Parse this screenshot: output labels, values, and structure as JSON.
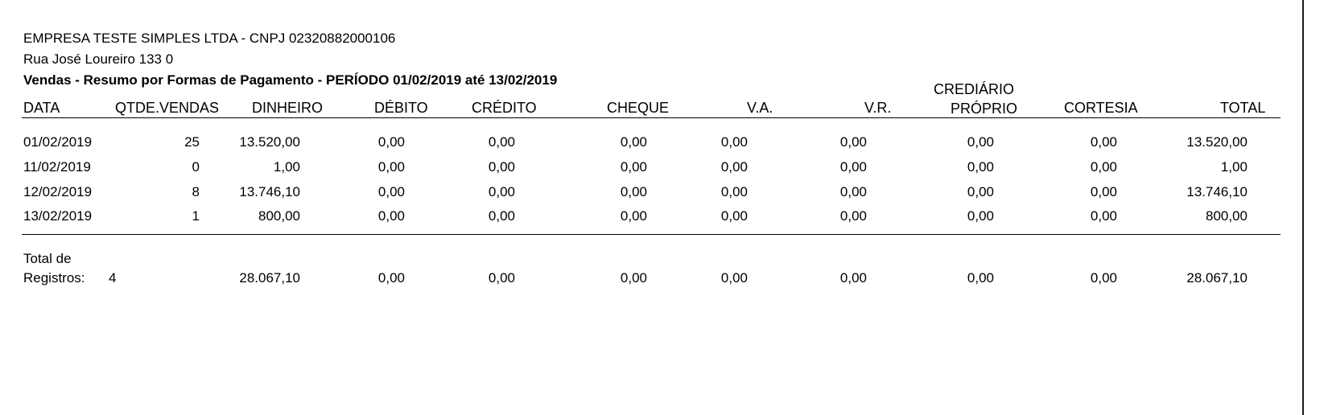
{
  "header": {
    "company": "EMPRESA TESTE SIMPLES LTDA - CNPJ 02320882000106",
    "address": "Rua José Loureiro 133 0",
    "report_title": "Vendas - Resumo por Formas de Pagamento - PERÍODO 01/02/2019 até 13/02/2019"
  },
  "columns": {
    "data": "DATA",
    "qtde_vendas": "QTDE.VENDAS",
    "dinheiro": "DINHEIRO",
    "debito": "DÉBITO",
    "credito": "CRÉDITO",
    "cheque": "CHEQUE",
    "va": "V.A.",
    "vr": "V.R.",
    "crediario_line1": "CREDIÁRIO",
    "crediario_line2": "PRÓPRIO",
    "cortesia": "CORTESIA",
    "total": "TOTAL"
  },
  "rows": [
    {
      "data": "01/02/2019",
      "qtde": "25",
      "dinheiro": "13.520,00",
      "debito": "0,00",
      "credito": "0,00",
      "cheque": "0,00",
      "va": "0,00",
      "vr": "0,00",
      "crediario": "0,00",
      "cortesia": "0,00",
      "total": "13.520,00"
    },
    {
      "data": "11/02/2019",
      "qtde": "0",
      "dinheiro": "1,00",
      "debito": "0,00",
      "credito": "0,00",
      "cheque": "0,00",
      "va": "0,00",
      "vr": "0,00",
      "crediario": "0,00",
      "cortesia": "0,00",
      "total": "1,00"
    },
    {
      "data": "12/02/2019",
      "qtde": "8",
      "dinheiro": "13.746,10",
      "debito": "0,00",
      "credito": "0,00",
      "cheque": "0,00",
      "va": "0,00",
      "vr": "0,00",
      "crediario": "0,00",
      "cortesia": "0,00",
      "total": "13.746,10"
    },
    {
      "data": "13/02/2019",
      "qtde": "1",
      "dinheiro": "800,00",
      "debito": "0,00",
      "credito": "0,00",
      "cheque": "0,00",
      "va": "0,00",
      "vr": "0,00",
      "crediario": "0,00",
      "cortesia": "0,00",
      "total": "800,00"
    }
  ],
  "footer": {
    "label_line1": "Total de",
    "label_line2": "Registros:",
    "count": "4",
    "dinheiro": "28.067,10",
    "debito": "0,00",
    "credito": "0,00",
    "cheque": "0,00",
    "va": "0,00",
    "vr": "0,00",
    "crediario": "0,00",
    "cortesia": "0,00",
    "total": "28.067,10"
  }
}
